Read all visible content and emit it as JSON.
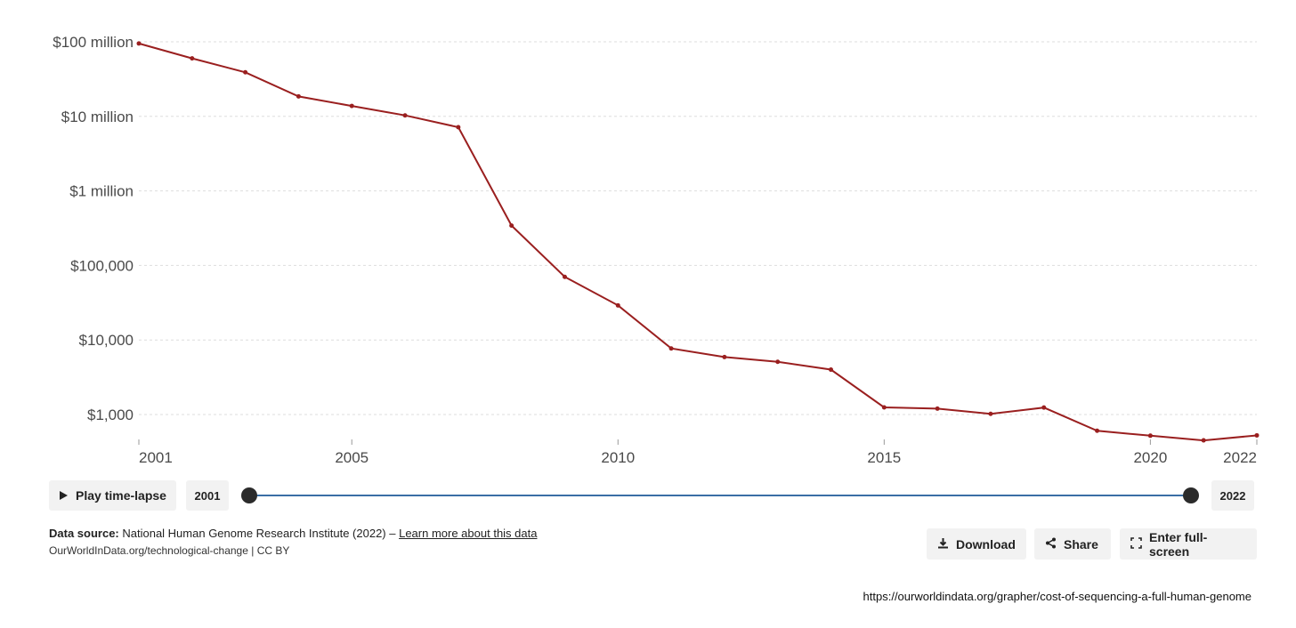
{
  "chart_data": {
    "type": "line",
    "y_scale": "log",
    "ylim": [
      500,
      100000000
    ],
    "y_ticks": [
      {
        "value": 1000,
        "label": "$1,000"
      },
      {
        "value": 10000,
        "label": "$10,000"
      },
      {
        "value": 100000,
        "label": "$100,000"
      },
      {
        "value": 1000000,
        "label": "$1 million"
      },
      {
        "value": 10000000,
        "label": "$10 million"
      },
      {
        "value": 100000000,
        "label": "$100 million"
      }
    ],
    "xlim": [
      2001,
      2022
    ],
    "x_ticks": [
      "2001",
      "2005",
      "2010",
      "2015",
      "2020",
      "2022"
    ],
    "grid": "horizontal dashed",
    "color": "#9a1f1f",
    "series": [
      {
        "x": [
          2001,
          2002,
          2003,
          2004,
          2005,
          2006,
          2007,
          2008,
          2009,
          2010,
          2011,
          2012,
          2013,
          2014,
          2015,
          2016,
          2017,
          2018,
          2019,
          2020,
          2021,
          2022
        ],
        "values": [
          95000000,
          60000000,
          39000000,
          18500000,
          13800000,
          10300000,
          7150000,
          342000,
          70300,
          29100,
          7700,
          5900,
          5100,
          4000,
          1245,
          1200,
          1020,
          1240,
          605,
          520,
          450,
          525
        ]
      }
    ]
  },
  "controls": {
    "play_label": "Play time-lapse",
    "start_year": "2001",
    "end_year": "2022"
  },
  "footer": {
    "source_bold": "Data source:",
    "source_text": " National Human Genome Research Institute (2022) – ",
    "source_link": "Learn more about this data",
    "license": "OurWorldInData.org/technological-change | CC BY",
    "download_label": "Download",
    "share_label": "Share",
    "fullscreen_label": "Enter full-screen"
  },
  "url": "https://ourworldindata.org/grapher/cost-of-sequencing-a-full-human-genome",
  "icons": {
    "play": "play-icon",
    "download": "download-icon",
    "share": "share-icon",
    "fullscreen": "fullscreen-icon"
  }
}
